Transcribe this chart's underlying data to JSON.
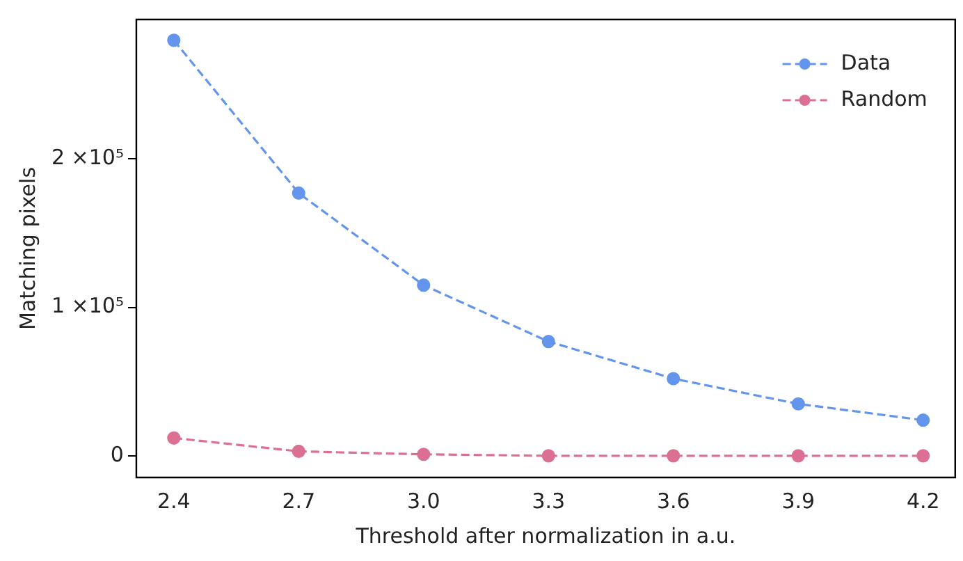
{
  "chart_data": {
    "type": "line",
    "xlabel": "Threshold after normalization in a.u.",
    "ylabel": "Matching pixels",
    "x": [
      2.4,
      2.7,
      3.0,
      3.3,
      3.6,
      3.9,
      4.2
    ],
    "series": [
      {
        "name": "Data",
        "color": "#6495ed",
        "values": [
          280000,
          177000,
          115000,
          77000,
          52000,
          35000,
          24000
        ]
      },
      {
        "name": "Random",
        "color": "#db7093",
        "values": [
          12000,
          3000,
          1000,
          0,
          0,
          0,
          0
        ]
      }
    ],
    "xlim": [
      2.31,
      4.277
    ],
    "xticks": [
      2.4,
      2.7,
      {
        "value": 3,
        "label": "3.0"
      },
      3.3,
      3.6,
      3.9,
      4.2
    ],
    "ylim": [
      -14600,
      294000
    ],
    "yticks": [
      0,
      {
        "value": 100000,
        "label": "1 ×10⁵"
      },
      {
        "value": 200000,
        "label": "2 ×10⁵"
      }
    ],
    "grid": false,
    "legend": "top right",
    "marker": "circle",
    "line_style": "dashed"
  }
}
